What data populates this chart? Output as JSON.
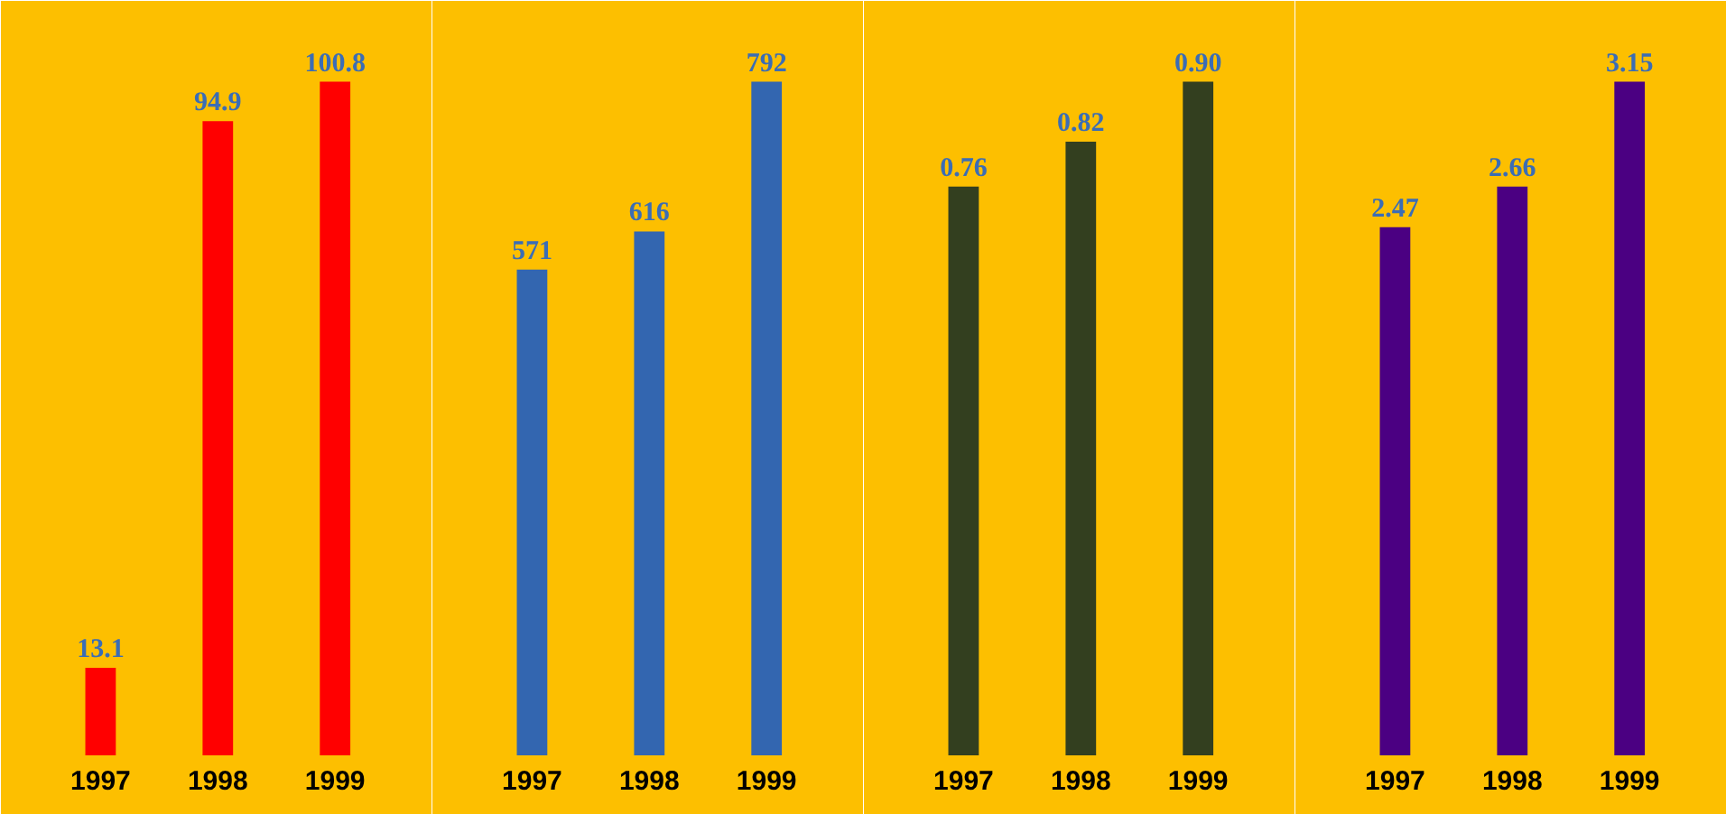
{
  "chart_data": [
    {
      "type": "bar",
      "categories": [
        "1997",
        "1998",
        "1999"
      ],
      "values": [
        13.1,
        94.9,
        100.8
      ],
      "color": "#ff0000",
      "data_labels": true,
      "value_labels": [
        "13.1",
        "94.9",
        "100.8"
      ],
      "grid": false
    },
    {
      "type": "bar",
      "categories": [
        "1997",
        "1998",
        "1999"
      ],
      "values": [
        571,
        616,
        792
      ],
      "color": "#3366b0",
      "data_labels": true,
      "value_labels": [
        "571",
        "616",
        "792"
      ],
      "grid": false
    },
    {
      "type": "bar",
      "categories": [
        "1997",
        "1998",
        "1999"
      ],
      "values": [
        0.76,
        0.82,
        0.9
      ],
      "color": "#333f1f",
      "data_labels": true,
      "value_labels": [
        "0.76",
        "0.82",
        "0.90"
      ],
      "grid": false
    },
    {
      "type": "bar",
      "categories": [
        "1997",
        "1998",
        "1999"
      ],
      "values": [
        2.47,
        2.66,
        3.15
      ],
      "color": "#4b0082",
      "data_labels": true,
      "value_labels": [
        "2.47",
        "2.66",
        "3.15"
      ],
      "grid": false
    }
  ]
}
